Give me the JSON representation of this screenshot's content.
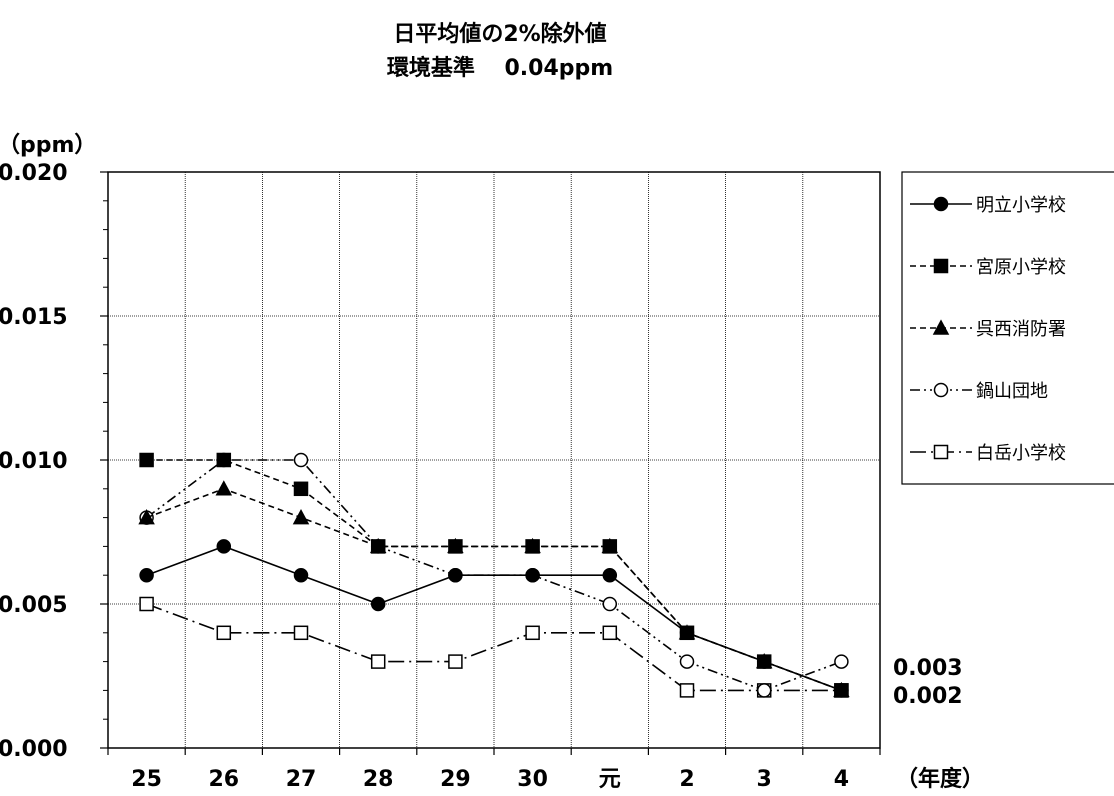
{
  "chart_data": {
    "type": "line",
    "title": "日平均値の2%除外値",
    "subtitle": "環境基準　 0.04ppm",
    "ylabel": "（ppm）",
    "xlabel": "（年度）",
    "categories": [
      "25",
      "26",
      "27",
      "28",
      "29",
      "30",
      "元",
      "2",
      "3",
      "4"
    ],
    "ylim": [
      0,
      0.02
    ],
    "yticks": [
      "0.000",
      "0.005",
      "0.010",
      "0.015",
      "0.020"
    ],
    "grid": true,
    "legend_position": "right",
    "series": [
      {
        "name": "明立小学校",
        "marker": "circle-filled",
        "dash": "solid",
        "values": [
          0.006,
          0.007,
          0.006,
          0.005,
          0.006,
          0.006,
          0.006,
          0.004,
          0.003,
          0.002
        ]
      },
      {
        "name": "宮原小学校",
        "marker": "square-filled",
        "dash": "dashed",
        "values": [
          0.01,
          0.01,
          0.009,
          0.007,
          0.007,
          0.007,
          0.007,
          0.004,
          0.003,
          0.002
        ]
      },
      {
        "name": "呉西消防署",
        "marker": "triangle-filled",
        "dash": "dashed",
        "values": [
          0.008,
          0.009,
          0.008,
          0.007,
          0.007,
          0.007,
          0.007,
          0.004,
          0.003,
          0.002
        ]
      },
      {
        "name": "鍋山団地",
        "marker": "circle-open",
        "dash": "dashdotdot",
        "values": [
          0.008,
          0.01,
          0.01,
          0.007,
          0.006,
          0.006,
          0.005,
          0.003,
          0.002,
          0.003
        ]
      },
      {
        "name": "白岳小学校",
        "marker": "square-open",
        "dash": "longdashdot",
        "values": [
          0.005,
          0.004,
          0.004,
          0.003,
          0.003,
          0.004,
          0.004,
          0.002,
          0.002,
          0.002
        ]
      }
    ],
    "annotations": [
      "0.003",
      "0.002"
    ]
  }
}
